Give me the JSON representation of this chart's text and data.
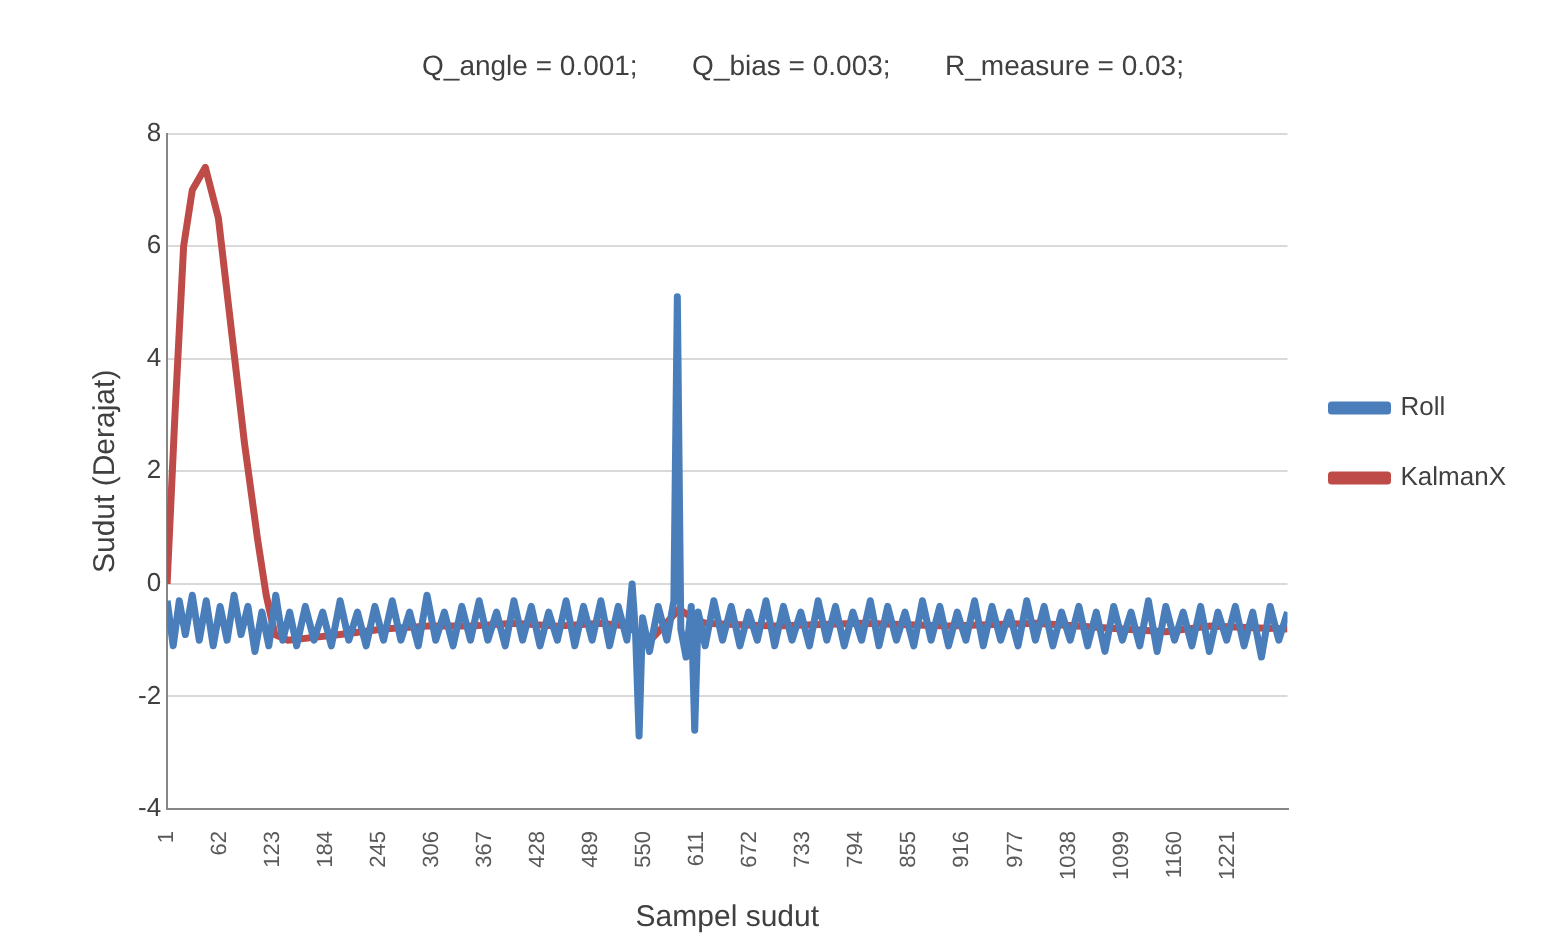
{
  "chart_data": {
    "type": "line",
    "title": "Q_angle = 0.001;       Q_bias = 0.003;       R_measure = 0.03;",
    "xlabel": "Sampel sudut",
    "ylabel": "Sudut (Derajat)",
    "xlim": [
      1,
      1290
    ],
    "xticks": [
      1,
      62,
      123,
      184,
      245,
      306,
      367,
      428,
      489,
      550,
      611,
      672,
      733,
      794,
      855,
      916,
      977,
      1038,
      1099,
      1160,
      1221
    ],
    "ylim": [
      -4,
      8
    ],
    "yticks": [
      -4,
      -2,
      0,
      2,
      4,
      6,
      8
    ],
    "grid": "y",
    "legend": "right",
    "marker": "none",
    "line_style": "solid",
    "series": [
      {
        "name": "Roll",
        "color": "#4a7ebb",
        "x": [
          1,
          8,
          15,
          22,
          30,
          38,
          46,
          54,
          62,
          70,
          78,
          86,
          94,
          102,
          110,
          118,
          126,
          134,
          142,
          150,
          160,
          170,
          180,
          190,
          200,
          210,
          220,
          230,
          240,
          250,
          260,
          270,
          280,
          290,
          300,
          310,
          320,
          330,
          340,
          350,
          360,
          370,
          380,
          390,
          400,
          410,
          420,
          430,
          440,
          450,
          460,
          470,
          480,
          490,
          500,
          510,
          520,
          530,
          536,
          540,
          544,
          548,
          556,
          566,
          576,
          584,
          588,
          592,
          598,
          604,
          608,
          612,
          620,
          630,
          640,
          650,
          660,
          670,
          680,
          690,
          700,
          710,
          720,
          730,
          740,
          750,
          760,
          770,
          780,
          790,
          800,
          810,
          820,
          830,
          840,
          850,
          860,
          870,
          880,
          890,
          900,
          910,
          920,
          930,
          940,
          950,
          960,
          970,
          980,
          990,
          1000,
          1010,
          1020,
          1030,
          1040,
          1050,
          1060,
          1070,
          1080,
          1090,
          1100,
          1110,
          1120,
          1130,
          1140,
          1150,
          1160,
          1170,
          1180,
          1190,
          1200,
          1210,
          1220,
          1230,
          1240,
          1250,
          1260,
          1270,
          1280,
          1290
        ],
        "values": [
          -0.3,
          -1.1,
          -0.3,
          -0.9,
          -0.2,
          -1.0,
          -0.3,
          -1.1,
          -0.4,
          -1.0,
          -0.2,
          -0.9,
          -0.4,
          -1.2,
          -0.5,
          -1.1,
          -0.2,
          -1.0,
          -0.5,
          -1.1,
          -0.4,
          -1.0,
          -0.5,
          -1.1,
          -0.3,
          -1.0,
          -0.5,
          -1.1,
          -0.4,
          -1.0,
          -0.3,
          -1.0,
          -0.5,
          -1.1,
          -0.2,
          -1.0,
          -0.5,
          -1.1,
          -0.4,
          -1.0,
          -0.3,
          -1.0,
          -0.5,
          -1.1,
          -0.3,
          -1.0,
          -0.4,
          -1.1,
          -0.5,
          -1.0,
          -0.3,
          -1.1,
          -0.4,
          -1.0,
          -0.3,
          -1.1,
          -0.4,
          -1.0,
          0.0,
          -0.9,
          -2.7,
          -0.6,
          -1.2,
          -0.4,
          -1.0,
          -0.3,
          5.1,
          -0.8,
          -1.3,
          -0.4,
          -2.6,
          -0.5,
          -1.1,
          -0.3,
          -1.0,
          -0.4,
          -1.1,
          -0.5,
          -1.0,
          -0.3,
          -1.1,
          -0.4,
          -1.0,
          -0.5,
          -1.1,
          -0.3,
          -1.0,
          -0.4,
          -1.1,
          -0.5,
          -1.0,
          -0.3,
          -1.1,
          -0.4,
          -1.0,
          -0.5,
          -1.1,
          -0.3,
          -1.0,
          -0.4,
          -1.1,
          -0.5,
          -1.0,
          -0.3,
          -1.1,
          -0.4,
          -1.0,
          -0.5,
          -1.1,
          -0.3,
          -1.0,
          -0.4,
          -1.1,
          -0.5,
          -1.0,
          -0.4,
          -1.1,
          -0.5,
          -1.2,
          -0.4,
          -1.0,
          -0.5,
          -1.1,
          -0.3,
          -1.2,
          -0.4,
          -1.0,
          -0.5,
          -1.1,
          -0.4,
          -1.2,
          -0.5,
          -1.0,
          -0.4,
          -1.1,
          -0.5,
          -1.3,
          -0.4,
          -1.0,
          -0.5
        ]
      },
      {
        "name": "KalmanX",
        "color": "#be4b48",
        "x": [
          1,
          10,
          20,
          30,
          45,
          60,
          75,
          90,
          105,
          115,
          125,
          140,
          170,
          200,
          250,
          300,
          350,
          400,
          450,
          500,
          530,
          545,
          560,
          575,
          590,
          605,
          620,
          700,
          800,
          900,
          1000,
          1100,
          1150,
          1200,
          1290
        ],
        "values": [
          0,
          3.0,
          6.0,
          7.0,
          7.4,
          6.5,
          4.5,
          2.5,
          0.8,
          -0.2,
          -0.9,
          -1.0,
          -0.95,
          -0.9,
          -0.8,
          -0.75,
          -0.75,
          -0.7,
          -0.75,
          -0.7,
          -0.75,
          -0.9,
          -0.95,
          -0.7,
          -0.45,
          -0.6,
          -0.7,
          -0.75,
          -0.7,
          -0.75,
          -0.7,
          -0.8,
          -0.85,
          -0.75,
          -0.8
        ]
      }
    ]
  }
}
